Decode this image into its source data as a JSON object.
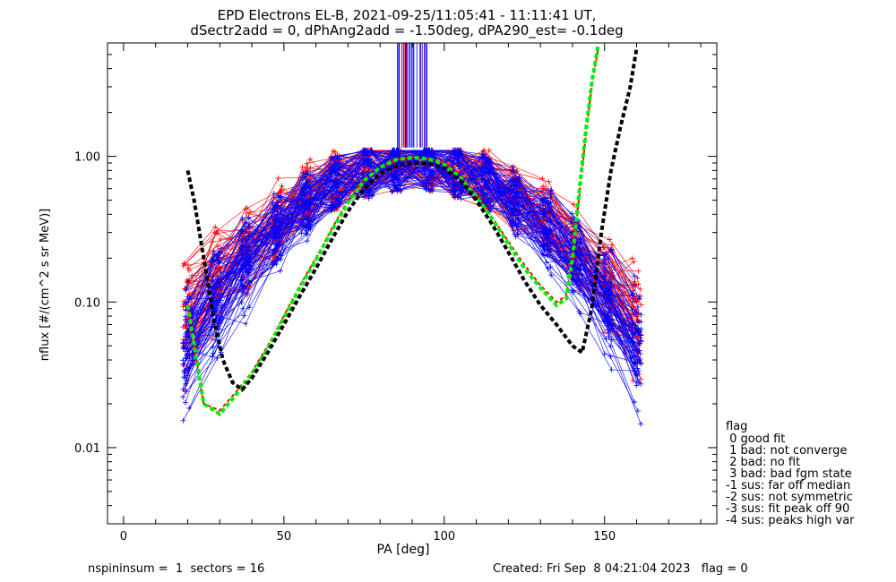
{
  "chart_data": {
    "type": "line",
    "title_line1": "EPD Electrons EL-B, 2021-09-25/11:05:41 - 11:11:41 UT,",
    "title_line2": "dSectr2add = 0, dPhAng2add = -1.50deg, dPA290_est=  -0.1deg",
    "xlabel": "PA [deg]",
    "ylabel": "nflux [#/(cm^2 s sr MeV)]",
    "xlim": [
      -5,
      185
    ],
    "ylim": [
      0.003,
      6.0
    ],
    "yscale": "log",
    "x_ticks": [
      0,
      50,
      100,
      150
    ],
    "y_ticks": [
      {
        "value": 0.01,
        "label": "0.01"
      },
      {
        "value": 0.1,
        "label": "0.10"
      },
      {
        "value": 1.0,
        "label": "1.00"
      }
    ],
    "series": [
      {
        "color": "#ff0000",
        "style": "dashed",
        "x": [
          20,
          25,
          30,
          35,
          40,
          45,
          50,
          55,
          60,
          65,
          70,
          75,
          80,
          85,
          90,
          95,
          100,
          105,
          110,
          115,
          120,
          125,
          130,
          135,
          138,
          140,
          142,
          144,
          146,
          148
        ],
        "y": [
          0.09,
          0.02,
          0.018,
          0.024,
          0.033,
          0.05,
          0.08,
          0.13,
          0.2,
          0.32,
          0.5,
          0.7,
          0.85,
          0.95,
          0.98,
          0.97,
          0.9,
          0.75,
          0.55,
          0.38,
          0.26,
          0.18,
          0.13,
          0.1,
          0.11,
          0.2,
          0.5,
          1.3,
          3.0,
          5.5
        ]
      },
      {
        "color": "#00ee00",
        "style": "dashed",
        "x": [
          20,
          25,
          30,
          35,
          40,
          45,
          50,
          55,
          60,
          65,
          70,
          75,
          80,
          85,
          90,
          95,
          100,
          105,
          110,
          115,
          120,
          125,
          130,
          135,
          138,
          140,
          142,
          144,
          146,
          148
        ],
        "y": [
          0.095,
          0.02,
          0.017,
          0.023,
          0.032,
          0.048,
          0.078,
          0.125,
          0.195,
          0.31,
          0.48,
          0.68,
          0.84,
          0.95,
          0.98,
          0.96,
          0.88,
          0.72,
          0.53,
          0.37,
          0.25,
          0.17,
          0.125,
          0.095,
          0.105,
          0.2,
          0.55,
          1.4,
          3.2,
          5.8
        ]
      },
      {
        "color": "#000000",
        "style": "dashed",
        "x": [
          20,
          22,
          25,
          28,
          31,
          34,
          37,
          40,
          45,
          50,
          55,
          60,
          65,
          70,
          75,
          80,
          85,
          90,
          95,
          100,
          105,
          110,
          115,
          120,
          125,
          130,
          135,
          140,
          143,
          146,
          149,
          152,
          155,
          158,
          160
        ],
        "y": [
          0.8,
          0.5,
          0.2,
          0.08,
          0.04,
          0.028,
          0.025,
          0.03,
          0.045,
          0.07,
          0.11,
          0.17,
          0.27,
          0.42,
          0.6,
          0.76,
          0.86,
          0.9,
          0.89,
          0.83,
          0.68,
          0.5,
          0.34,
          0.22,
          0.14,
          0.095,
          0.07,
          0.05,
          0.045,
          0.09,
          0.3,
          0.8,
          1.6,
          3.0,
          5.5
        ]
      }
    ],
    "legend": {
      "position": "bottom-right",
      "title": "flag",
      "entries": [
        " 0 good fit",
        " 1 bad: not converge",
        " 2 bad: no fit",
        " 3 bad: bad fgm state",
        "-1 sus: far off median",
        "-2 sus: not symmetric",
        "-3 sus: fit peak off 90",
        "-4 sus: peaks high var"
      ]
    },
    "footer_left": "nspininsum =  1  sectors = 16",
    "footer_right": "Created: Fri Sep  8 04:21:04 2023   flag = 0"
  }
}
